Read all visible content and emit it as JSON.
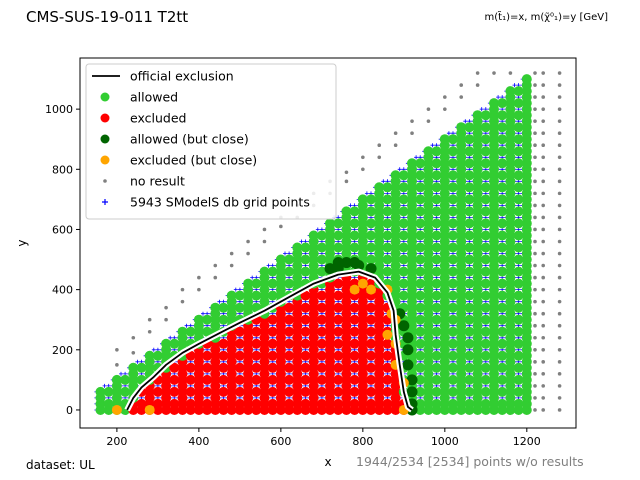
{
  "header": {
    "title": "CMS-SUS-19-011 T2tt",
    "subtitle": "m(t̃₁)=x, m(χ̃⁰₁)=y [GeV]"
  },
  "footer": {
    "dataset": "dataset: UL",
    "points_info": "1944/2534 [2534] points w/o results"
  },
  "chart_data": {
    "type": "scatter",
    "xlabel": "x",
    "ylabel": "y",
    "xlim": [
      110,
      1320
    ],
    "ylim": [
      -60,
      1170
    ],
    "xticks": [
      200,
      400,
      600,
      800,
      1000,
      1200
    ],
    "yticks": [
      0,
      200,
      400,
      600,
      800,
      1000
    ],
    "grid": false,
    "legend_position": "top-left",
    "legend": [
      {
        "label": "official exclusion",
        "marker": "line",
        "color": "#000000"
      },
      {
        "label": "allowed",
        "marker": "circle",
        "color": "#32cd32"
      },
      {
        "label": "excluded",
        "marker": "circle",
        "color": "#ff0000"
      },
      {
        "label": "allowed (but close)",
        "marker": "circle",
        "color": "#006400"
      },
      {
        "label": "excluded (but close)",
        "marker": "circle",
        "color": "#ffa500"
      },
      {
        "label": "no result",
        "marker": "dot",
        "color": "#808080"
      },
      {
        "label": "5943 SModelS db grid points",
        "marker": "plus",
        "color": "#0000ff"
      }
    ],
    "official_exclusion": [
      [
        225,
        0
      ],
      [
        240,
        40
      ],
      [
        260,
        75
      ],
      [
        290,
        110
      ],
      [
        320,
        150
      ],
      [
        360,
        190
      ],
      [
        400,
        220
      ],
      [
        450,
        255
      ],
      [
        500,
        290
      ],
      [
        560,
        330
      ],
      [
        620,
        375
      ],
      [
        680,
        420
      ],
      [
        740,
        450
      ],
      [
        790,
        460
      ],
      [
        830,
        440
      ],
      [
        860,
        390
      ],
      [
        875,
        330
      ],
      [
        880,
        250
      ],
      [
        890,
        150
      ],
      [
        900,
        60
      ],
      [
        910,
        10
      ],
      [
        920,
        0
      ]
    ],
    "allowed_close_points": [
      [
        720,
        470
      ],
      [
        740,
        470
      ],
      [
        760,
        490
      ],
      [
        790,
        480
      ],
      [
        820,
        470
      ],
      [
        890,
        320
      ],
      [
        900,
        280
      ],
      [
        910,
        240
      ],
      [
        910,
        200
      ],
      [
        910,
        150
      ],
      [
        920,
        100
      ],
      [
        920,
        60
      ],
      [
        920,
        20
      ],
      [
        920,
        0
      ],
      [
        740,
        490
      ],
      [
        780,
        490
      ]
    ],
    "excluded_close_points": [
      [
        200,
        0
      ],
      [
        280,
        0
      ],
      [
        860,
        400
      ],
      [
        880,
        300
      ],
      [
        880,
        220
      ],
      [
        880,
        150
      ],
      [
        860,
        250
      ],
      [
        820,
        400
      ],
      [
        780,
        400
      ],
      [
        800,
        420
      ],
      [
        870,
        320
      ],
      [
        900,
        90
      ],
      [
        900,
        0
      ]
    ],
    "no_result_points": [
      [
        200,
        150
      ],
      [
        200,
        200
      ],
      [
        240,
        190
      ],
      [
        240,
        240
      ],
      [
        280,
        260
      ],
      [
        280,
        300
      ],
      [
        320,
        300
      ],
      [
        320,
        340
      ],
      [
        360,
        360
      ],
      [
        360,
        400
      ],
      [
        400,
        400
      ],
      [
        400,
        440
      ],
      [
        440,
        440
      ],
      [
        440,
        480
      ],
      [
        480,
        480
      ],
      [
        480,
        520
      ],
      [
        520,
        520
      ],
      [
        520,
        560
      ],
      [
        560,
        560
      ],
      [
        560,
        600
      ],
      [
        600,
        610
      ],
      [
        600,
        640
      ],
      [
        640,
        640
      ],
      [
        640,
        680
      ],
      [
        680,
        680
      ],
      [
        680,
        720
      ],
      [
        720,
        720
      ],
      [
        720,
        760
      ],
      [
        760,
        760
      ],
      [
        760,
        790
      ],
      [
        800,
        800
      ],
      [
        800,
        840
      ],
      [
        840,
        840
      ],
      [
        840,
        880
      ],
      [
        880,
        880
      ],
      [
        880,
        920
      ],
      [
        920,
        920
      ],
      [
        920,
        960
      ],
      [
        960,
        960
      ],
      [
        960,
        1000
      ],
      [
        1000,
        1000
      ],
      [
        1000,
        1040
      ],
      [
        1040,
        1040
      ],
      [
        1040,
        1080
      ],
      [
        1080,
        1080
      ],
      [
        1080,
        1120
      ],
      [
        1120,
        1120
      ],
      [
        1160,
        1120
      ]
    ],
    "no_result_columns_x": [
      1220,
      1240,
      1280
    ],
    "no_result_columns_ymax": [
      1120,
      1120,
      1120
    ],
    "green_scatter_columns_x": [
      960,
      1000,
      1040,
      1080,
      1120,
      1160,
      1200
    ],
    "excluded_columns_x": [
      280,
      320,
      360,
      400,
      440,
      480,
      520,
      560,
      600,
      640,
      680,
      720,
      760,
      800,
      840,
      860
    ]
  }
}
